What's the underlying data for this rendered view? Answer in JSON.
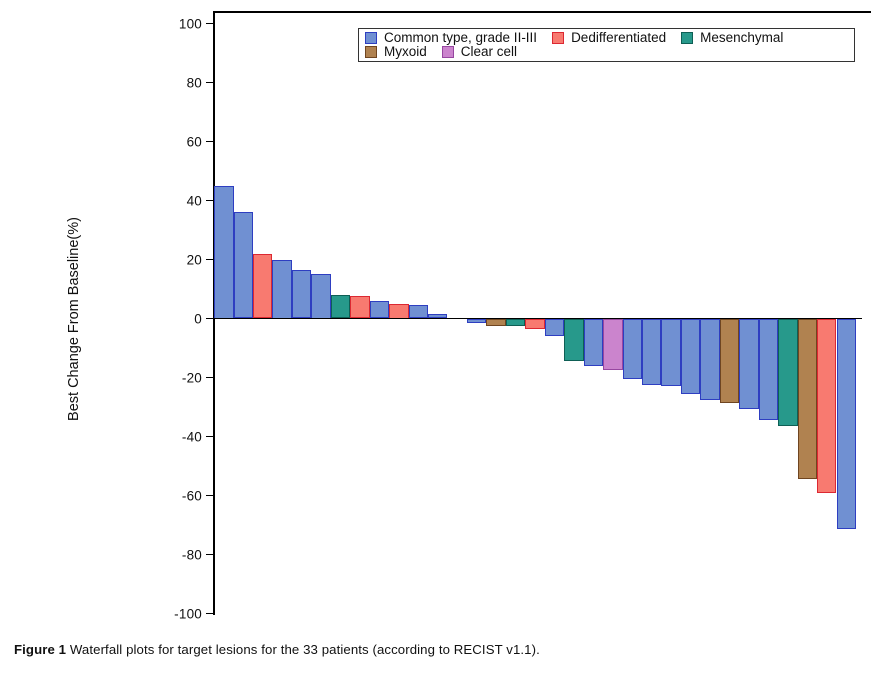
{
  "figure": {
    "caption_label": "Figure 1",
    "caption_text": " Waterfall plots for target lesions for the 33 patients (according to RECIST v1.1)."
  },
  "chart_data": {
    "type": "bar",
    "subtype": "waterfall",
    "title": "",
    "xlabel": "",
    "ylabel": "Best Change From Baseline(%)",
    "ylim": [
      -100,
      100
    ],
    "grid": false,
    "legend_position": "top-center",
    "yticks": [
      {
        "value": 100,
        "label": "100"
      },
      {
        "value": 80,
        "label": "80"
      },
      {
        "value": 60,
        "label": "60"
      },
      {
        "value": 40,
        "label": "40"
      },
      {
        "value": 20,
        "label": "20"
      },
      {
        "value": 0,
        "label": "0"
      },
      {
        "value": -20,
        "label": "-20"
      },
      {
        "value": -40,
        "label": "-40"
      },
      {
        "value": -60,
        "label": "-60"
      },
      {
        "value": -80,
        "label": "-80"
      },
      {
        "value": -100,
        "label": "-100"
      }
    ],
    "groups": [
      {
        "id": "common",
        "label": "Common type, grade II-III",
        "fill": "#7090D2",
        "border": "#2E3EC1"
      },
      {
        "id": "dediff",
        "label": "Dedifferentiated",
        "fill": "#F87A70",
        "border": "#DC2832"
      },
      {
        "id": "mesen",
        "label": "Mesenchymal",
        "fill": "#27998B",
        "border": "#0E5F55"
      },
      {
        "id": "myxoid",
        "label": "Myxoid",
        "fill": "#B08250",
        "border": "#6F4520"
      },
      {
        "id": "clear",
        "label": "Clear cell",
        "fill": "#CB84CD",
        "border": "#9747A0"
      }
    ],
    "series_name": "best_change_from_baseline_percent",
    "points": [
      {
        "patient": 1,
        "value": 45,
        "group": "common"
      },
      {
        "patient": 2,
        "value": 36,
        "group": "common"
      },
      {
        "patient": 3,
        "value": 22,
        "group": "dediff"
      },
      {
        "patient": 4,
        "value": 20,
        "group": "common"
      },
      {
        "patient": 5,
        "value": 16.5,
        "group": "common"
      },
      {
        "patient": 6,
        "value": 15,
        "group": "common"
      },
      {
        "patient": 7,
        "value": 8,
        "group": "mesen"
      },
      {
        "patient": 8,
        "value": 7.5,
        "group": "dediff"
      },
      {
        "patient": 9,
        "value": 6,
        "group": "common"
      },
      {
        "patient": 10,
        "value": 5,
        "group": "dediff"
      },
      {
        "patient": 11,
        "value": 4.5,
        "group": "common"
      },
      {
        "patient": 12,
        "value": 1.5,
        "group": "common"
      },
      {
        "patient": 13,
        "value": 0,
        "group": "common"
      },
      {
        "patient": 14,
        "value": -1.5,
        "group": "common"
      },
      {
        "patient": 15,
        "value": -2.5,
        "group": "myxoid"
      },
      {
        "patient": 16,
        "value": -2.5,
        "group": "mesen"
      },
      {
        "patient": 17,
        "value": -3.5,
        "group": "dediff"
      },
      {
        "patient": 18,
        "value": -6,
        "group": "common"
      },
      {
        "patient": 19,
        "value": -14.5,
        "group": "mesen"
      },
      {
        "patient": 20,
        "value": -16,
        "group": "common"
      },
      {
        "patient": 21,
        "value": -17.5,
        "group": "clear"
      },
      {
        "patient": 22,
        "value": -20.5,
        "group": "common"
      },
      {
        "patient": 23,
        "value": -22.5,
        "group": "common"
      },
      {
        "patient": 24,
        "value": -23,
        "group": "common"
      },
      {
        "patient": 25,
        "value": -25.5,
        "group": "common"
      },
      {
        "patient": 26,
        "value": -27.5,
        "group": "common"
      },
      {
        "patient": 27,
        "value": -28.5,
        "group": "myxoid"
      },
      {
        "patient": 28,
        "value": -30.5,
        "group": "common"
      },
      {
        "patient": 29,
        "value": -34.5,
        "group": "common"
      },
      {
        "patient": 30,
        "value": -36.5,
        "group": "mesen"
      },
      {
        "patient": 31,
        "value": -54.5,
        "group": "myxoid"
      },
      {
        "patient": 32,
        "value": -59,
        "group": "dediff"
      },
      {
        "patient": 33,
        "value": -71.5,
        "group": "common"
      }
    ]
  }
}
